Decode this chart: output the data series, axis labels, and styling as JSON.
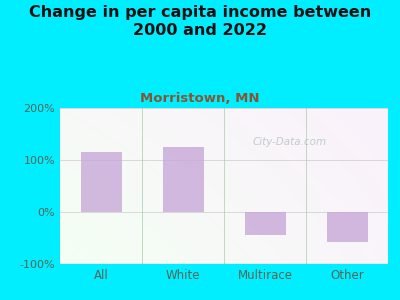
{
  "title": "Change in per capita income between\n2000 and 2022",
  "subtitle": "Morristown, MN",
  "categories": [
    "All",
    "White",
    "Multirace",
    "Other"
  ],
  "values": [
    115,
    125,
    -45,
    -58
  ],
  "bar_color": "#c8a8d8",
  "background_outer": "#00eeff",
  "title_color": "#111111",
  "subtitle_color": "#885533",
  "axis_label_color": "#556655",
  "ylim": [
    -100,
    200
  ],
  "yticks": [
    -100,
    0,
    100,
    200
  ],
  "ytick_labels": [
    "-100%",
    "0%",
    "100%",
    "200%"
  ],
  "watermark": "City-Data.com",
  "title_fontsize": 11.5,
  "subtitle_fontsize": 9.5,
  "bar_width": 0.5
}
